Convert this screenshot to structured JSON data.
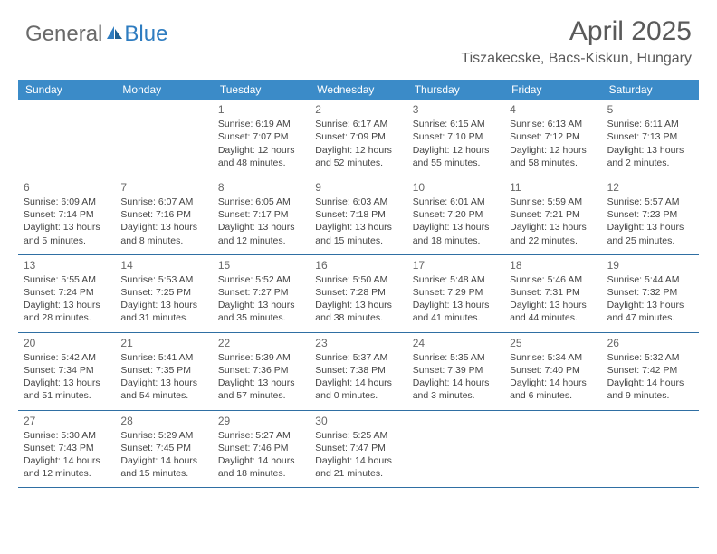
{
  "logo": {
    "text_general": "General",
    "text_blue": "Blue"
  },
  "title": "April 2025",
  "location": "Tiszakecske, Bacs-Kiskun, Hungary",
  "colors": {
    "header_bg": "#3b8bc8",
    "header_text": "#ffffff",
    "divider": "#2f6fa3",
    "body_text": "#444444",
    "title_text": "#5a5a5a",
    "logo_gray": "#6a6a6a",
    "logo_blue": "#2e7cc0",
    "background": "#ffffff"
  },
  "weekdays": [
    "Sunday",
    "Monday",
    "Tuesday",
    "Wednesday",
    "Thursday",
    "Friday",
    "Saturday"
  ],
  "weeks": [
    [
      {
        "day": "",
        "sunrise": "",
        "sunset": "",
        "daylight1": "",
        "daylight2": ""
      },
      {
        "day": "",
        "sunrise": "",
        "sunset": "",
        "daylight1": "",
        "daylight2": ""
      },
      {
        "day": "1",
        "sunrise": "Sunrise: 6:19 AM",
        "sunset": "Sunset: 7:07 PM",
        "daylight1": "Daylight: 12 hours",
        "daylight2": "and 48 minutes."
      },
      {
        "day": "2",
        "sunrise": "Sunrise: 6:17 AM",
        "sunset": "Sunset: 7:09 PM",
        "daylight1": "Daylight: 12 hours",
        "daylight2": "and 52 minutes."
      },
      {
        "day": "3",
        "sunrise": "Sunrise: 6:15 AM",
        "sunset": "Sunset: 7:10 PM",
        "daylight1": "Daylight: 12 hours",
        "daylight2": "and 55 minutes."
      },
      {
        "day": "4",
        "sunrise": "Sunrise: 6:13 AM",
        "sunset": "Sunset: 7:12 PM",
        "daylight1": "Daylight: 12 hours",
        "daylight2": "and 58 minutes."
      },
      {
        "day": "5",
        "sunrise": "Sunrise: 6:11 AM",
        "sunset": "Sunset: 7:13 PM",
        "daylight1": "Daylight: 13 hours",
        "daylight2": "and 2 minutes."
      }
    ],
    [
      {
        "day": "6",
        "sunrise": "Sunrise: 6:09 AM",
        "sunset": "Sunset: 7:14 PM",
        "daylight1": "Daylight: 13 hours",
        "daylight2": "and 5 minutes."
      },
      {
        "day": "7",
        "sunrise": "Sunrise: 6:07 AM",
        "sunset": "Sunset: 7:16 PM",
        "daylight1": "Daylight: 13 hours",
        "daylight2": "and 8 minutes."
      },
      {
        "day": "8",
        "sunrise": "Sunrise: 6:05 AM",
        "sunset": "Sunset: 7:17 PM",
        "daylight1": "Daylight: 13 hours",
        "daylight2": "and 12 minutes."
      },
      {
        "day": "9",
        "sunrise": "Sunrise: 6:03 AM",
        "sunset": "Sunset: 7:18 PM",
        "daylight1": "Daylight: 13 hours",
        "daylight2": "and 15 minutes."
      },
      {
        "day": "10",
        "sunrise": "Sunrise: 6:01 AM",
        "sunset": "Sunset: 7:20 PM",
        "daylight1": "Daylight: 13 hours",
        "daylight2": "and 18 minutes."
      },
      {
        "day": "11",
        "sunrise": "Sunrise: 5:59 AM",
        "sunset": "Sunset: 7:21 PM",
        "daylight1": "Daylight: 13 hours",
        "daylight2": "and 22 minutes."
      },
      {
        "day": "12",
        "sunrise": "Sunrise: 5:57 AM",
        "sunset": "Sunset: 7:23 PM",
        "daylight1": "Daylight: 13 hours",
        "daylight2": "and 25 minutes."
      }
    ],
    [
      {
        "day": "13",
        "sunrise": "Sunrise: 5:55 AM",
        "sunset": "Sunset: 7:24 PM",
        "daylight1": "Daylight: 13 hours",
        "daylight2": "and 28 minutes."
      },
      {
        "day": "14",
        "sunrise": "Sunrise: 5:53 AM",
        "sunset": "Sunset: 7:25 PM",
        "daylight1": "Daylight: 13 hours",
        "daylight2": "and 31 minutes."
      },
      {
        "day": "15",
        "sunrise": "Sunrise: 5:52 AM",
        "sunset": "Sunset: 7:27 PM",
        "daylight1": "Daylight: 13 hours",
        "daylight2": "and 35 minutes."
      },
      {
        "day": "16",
        "sunrise": "Sunrise: 5:50 AM",
        "sunset": "Sunset: 7:28 PM",
        "daylight1": "Daylight: 13 hours",
        "daylight2": "and 38 minutes."
      },
      {
        "day": "17",
        "sunrise": "Sunrise: 5:48 AM",
        "sunset": "Sunset: 7:29 PM",
        "daylight1": "Daylight: 13 hours",
        "daylight2": "and 41 minutes."
      },
      {
        "day": "18",
        "sunrise": "Sunrise: 5:46 AM",
        "sunset": "Sunset: 7:31 PM",
        "daylight1": "Daylight: 13 hours",
        "daylight2": "and 44 minutes."
      },
      {
        "day": "19",
        "sunrise": "Sunrise: 5:44 AM",
        "sunset": "Sunset: 7:32 PM",
        "daylight1": "Daylight: 13 hours",
        "daylight2": "and 47 minutes."
      }
    ],
    [
      {
        "day": "20",
        "sunrise": "Sunrise: 5:42 AM",
        "sunset": "Sunset: 7:34 PM",
        "daylight1": "Daylight: 13 hours",
        "daylight2": "and 51 minutes."
      },
      {
        "day": "21",
        "sunrise": "Sunrise: 5:41 AM",
        "sunset": "Sunset: 7:35 PM",
        "daylight1": "Daylight: 13 hours",
        "daylight2": "and 54 minutes."
      },
      {
        "day": "22",
        "sunrise": "Sunrise: 5:39 AM",
        "sunset": "Sunset: 7:36 PM",
        "daylight1": "Daylight: 13 hours",
        "daylight2": "and 57 minutes."
      },
      {
        "day": "23",
        "sunrise": "Sunrise: 5:37 AM",
        "sunset": "Sunset: 7:38 PM",
        "daylight1": "Daylight: 14 hours",
        "daylight2": "and 0 minutes."
      },
      {
        "day": "24",
        "sunrise": "Sunrise: 5:35 AM",
        "sunset": "Sunset: 7:39 PM",
        "daylight1": "Daylight: 14 hours",
        "daylight2": "and 3 minutes."
      },
      {
        "day": "25",
        "sunrise": "Sunrise: 5:34 AM",
        "sunset": "Sunset: 7:40 PM",
        "daylight1": "Daylight: 14 hours",
        "daylight2": "and 6 minutes."
      },
      {
        "day": "26",
        "sunrise": "Sunrise: 5:32 AM",
        "sunset": "Sunset: 7:42 PM",
        "daylight1": "Daylight: 14 hours",
        "daylight2": "and 9 minutes."
      }
    ],
    [
      {
        "day": "27",
        "sunrise": "Sunrise: 5:30 AM",
        "sunset": "Sunset: 7:43 PM",
        "daylight1": "Daylight: 14 hours",
        "daylight2": "and 12 minutes."
      },
      {
        "day": "28",
        "sunrise": "Sunrise: 5:29 AM",
        "sunset": "Sunset: 7:45 PM",
        "daylight1": "Daylight: 14 hours",
        "daylight2": "and 15 minutes."
      },
      {
        "day": "29",
        "sunrise": "Sunrise: 5:27 AM",
        "sunset": "Sunset: 7:46 PM",
        "daylight1": "Daylight: 14 hours",
        "daylight2": "and 18 minutes."
      },
      {
        "day": "30",
        "sunrise": "Sunrise: 5:25 AM",
        "sunset": "Sunset: 7:47 PM",
        "daylight1": "Daylight: 14 hours",
        "daylight2": "and 21 minutes."
      },
      {
        "day": "",
        "sunrise": "",
        "sunset": "",
        "daylight1": "",
        "daylight2": ""
      },
      {
        "day": "",
        "sunrise": "",
        "sunset": "",
        "daylight1": "",
        "daylight2": ""
      },
      {
        "day": "",
        "sunrise": "",
        "sunset": "",
        "daylight1": "",
        "daylight2": ""
      }
    ]
  ]
}
